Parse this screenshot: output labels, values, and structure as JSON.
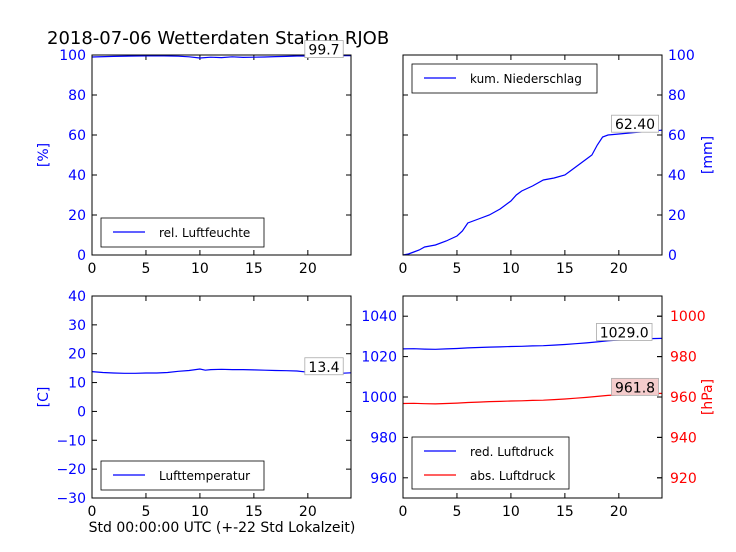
{
  "page_title": "2018-07-06 Wetterdaten Station RJOB",
  "x_label": "Std 00:00:00 UTC (+-22 Std Lokalzeit)",
  "colors": {
    "blue": "#0000ff",
    "red": "#ff0000",
    "black": "#000000"
  },
  "chart_data": [
    {
      "type": "line",
      "panel": "top-left",
      "ylabel": "[%]",
      "ylabel_side": "left",
      "ylabel_color": "#0000ff",
      "xlim": [
        0,
        24
      ],
      "ylim": [
        0,
        100
      ],
      "xticks": [
        0,
        5,
        10,
        15,
        20
      ],
      "yticks": [
        0,
        20,
        40,
        60,
        80,
        100
      ],
      "ytick_side": "left",
      "ytick_color": "#0000ff",
      "legend_position": "lower-right",
      "annotation": "99.7",
      "annotation_at": [
        21.5,
        99.7
      ],
      "annotation_bg": "#ffffff",
      "series": [
        {
          "name": "rel. Luftfeuchte",
          "color": "#0000ff",
          "x": [
            0,
            2,
            4,
            6,
            8,
            9,
            10,
            11,
            12,
            13,
            14,
            15,
            16,
            17,
            18,
            19,
            20,
            21,
            22,
            23,
            24
          ],
          "values": [
            99.0,
            99.3,
            99.5,
            99.6,
            99.4,
            99.1,
            98.5,
            98.9,
            98.7,
            99.1,
            98.8,
            98.9,
            99.0,
            99.2,
            99.3,
            99.5,
            99.5,
            99.6,
            99.6,
            99.7,
            99.7
          ]
        }
      ]
    },
    {
      "type": "line",
      "panel": "top-right",
      "ylabel": "[mm]",
      "ylabel_side": "right",
      "ylabel_color": "#0000ff",
      "xlim": [
        0,
        24
      ],
      "ylim": [
        0,
        100
      ],
      "xticks": [
        0,
        5,
        10,
        15,
        20
      ],
      "yticks": [
        0,
        20,
        40,
        60,
        80,
        100
      ],
      "ytick_side": "right",
      "ytick_color": "#0000ff",
      "legend_position": "top-left",
      "annotation": "62.40",
      "annotation_at": [
        21.5,
        62.4
      ],
      "annotation_bg": "#ffffff",
      "series": [
        {
          "name": "kum. Niederschlag",
          "color": "#0000ff",
          "x": [
            0,
            0.5,
            1,
            1.5,
            2,
            2.5,
            3,
            4,
            5,
            5.5,
            6,
            7,
            8,
            9,
            10,
            10.5,
            11,
            12,
            13,
            14,
            15,
            15.5,
            16,
            16.5,
            17,
            17.5,
            18,
            18.5,
            19,
            20,
            21,
            22,
            23,
            24
          ],
          "values": [
            0,
            0.5,
            1.5,
            2.5,
            4,
            4.5,
            5,
            7,
            9.5,
            12,
            16,
            18,
            20,
            23,
            27,
            30,
            32,
            34.5,
            37.5,
            38.5,
            40,
            42,
            44,
            46,
            48,
            50,
            55,
            59,
            60,
            60.5,
            61,
            61.5,
            62,
            62.4
          ]
        }
      ]
    },
    {
      "type": "line",
      "panel": "bottom-left",
      "ylabel": "[C]",
      "ylabel_side": "left",
      "ylabel_color": "#0000ff",
      "xlim": [
        0,
        24
      ],
      "ylim": [
        -30,
        40
      ],
      "xticks": [
        0,
        5,
        10,
        15,
        20
      ],
      "yticks": [
        -30,
        -20,
        -10,
        0,
        10,
        20,
        30,
        40
      ],
      "ytick_side": "left",
      "ytick_color": "#0000ff",
      "legend_position": "lower-right",
      "annotation": "13.4",
      "annotation_at": [
        21.5,
        13.4
      ],
      "annotation_bg": "#ffffff",
      "series": [
        {
          "name": "Lufttemperatur",
          "color": "#0000ff",
          "x": [
            0,
            1,
            2,
            3,
            4,
            5,
            6,
            7,
            8,
            9,
            10,
            10.5,
            11,
            12,
            13,
            14,
            15,
            16,
            17,
            18,
            19,
            20,
            21,
            22,
            23,
            24
          ],
          "values": [
            13.8,
            13.5,
            13.3,
            13.2,
            13.2,
            13.3,
            13.3,
            13.5,
            13.9,
            14.2,
            14.7,
            14.3,
            14.5,
            14.6,
            14.5,
            14.5,
            14.4,
            14.3,
            14.2,
            14.1,
            14.0,
            13.6,
            13.2,
            13.0,
            13.2,
            13.4
          ]
        }
      ]
    },
    {
      "type": "line",
      "panel": "bottom-right",
      "ylabel": "[hPa]",
      "ylabel_side": "right",
      "ylabel_color": "#ff0000",
      "xlim": [
        0,
        24
      ],
      "ylim": [
        950,
        1050
      ],
      "xticks": [
        0,
        5,
        10,
        15,
        20
      ],
      "yticks": [
        960,
        980,
        1000,
        1020,
        1040
      ],
      "ytick_side": "left",
      "ytick_color": "#0000ff",
      "y2lim": [
        910,
        1010
      ],
      "y2ticks": [
        920,
        940,
        960,
        980,
        1000
      ],
      "y2tick_color": "#ff0000",
      "legend_position": "lower-left",
      "annotation": "1029.0",
      "annotation_at": [
        20.5,
        1029.0
      ],
      "annotation_bg": "#ffffff",
      "annotation2": "961.8",
      "annotation2_at": [
        21.5,
        961.8
      ],
      "annotation2_bg": "#f4cccc",
      "series": [
        {
          "name": "red. Luftdruck",
          "color": "#0000ff",
          "axis": "left",
          "x": [
            0,
            1,
            2,
            3,
            4,
            5,
            6,
            7,
            8,
            9,
            10,
            11,
            12,
            13,
            14,
            15,
            16,
            17,
            18,
            19,
            20,
            21,
            22,
            23,
            24
          ],
          "values": [
            1023.8,
            1023.9,
            1023.7,
            1023.6,
            1023.8,
            1024.0,
            1024.3,
            1024.5,
            1024.7,
            1024.8,
            1025.0,
            1025.1,
            1025.3,
            1025.4,
            1025.7,
            1026.0,
            1026.4,
            1026.8,
            1027.3,
            1027.8,
            1028.2,
            1028.5,
            1028.7,
            1028.9,
            1029.0
          ]
        },
        {
          "name": "abs. Luftdruck",
          "color": "#ff0000",
          "axis": "right",
          "x": [
            0,
            1,
            2,
            3,
            4,
            5,
            6,
            7,
            8,
            9,
            10,
            11,
            12,
            13,
            14,
            15,
            16,
            17,
            18,
            19,
            20,
            21,
            22,
            23,
            24
          ],
          "values": [
            956.8,
            956.9,
            956.7,
            956.6,
            956.8,
            957.0,
            957.3,
            957.5,
            957.7,
            957.8,
            958.0,
            958.1,
            958.3,
            958.4,
            958.7,
            959.0,
            959.4,
            959.8,
            960.3,
            960.8,
            961.1,
            961.4,
            961.6,
            961.7,
            961.8
          ]
        }
      ]
    }
  ]
}
